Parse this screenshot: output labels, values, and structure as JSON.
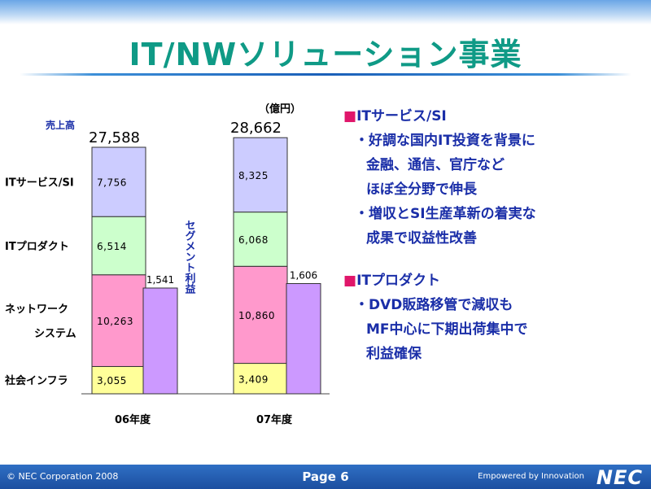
{
  "slide": {
    "title": "IT/NWソリューション事業"
  },
  "chart_data": {
    "type": "bar",
    "stacked": true,
    "unit": "（億円）",
    "categories": [
      "06年度",
      "07年度"
    ],
    "sales_label": "売上高",
    "totals": [
      "27,588",
      "28,662"
    ],
    "series": [
      {
        "name": "ITサービス/SI",
        "color": "#ccccff",
        "values": [
          7756,
          8325
        ],
        "labels": [
          "7,756",
          "8,325"
        ]
      },
      {
        "name": "ITプロダクト",
        "color": "#ccffcc",
        "values": [
          6514,
          6068
        ],
        "labels": [
          "6,514",
          "6,068"
        ]
      },
      {
        "name": "ネットワークシステム",
        "name_lines": [
          "ネットワーク",
          "システム"
        ],
        "color": "#ff99cc",
        "values": [
          10263,
          10860
        ],
        "labels": [
          "10,263",
          "10,860"
        ]
      },
      {
        "name": "社会インフラ",
        "color": "#ffff99",
        "values": [
          3055,
          3409
        ],
        "labels": [
          "3,055",
          "3,409"
        ]
      }
    ],
    "segment_profit": {
      "label": "セグメント利益",
      "color": "#cc99ff",
      "values": [
        1541,
        1606
      ],
      "labels": [
        "1,541",
        "1,606"
      ]
    }
  },
  "right_panel": {
    "sections": [
      {
        "heading_mark": "■",
        "heading": "ITサービス/SI",
        "bullets": [
          {
            "first": "・好調な国内IT投資を背景に",
            "rest": [
              "金融、通信、官庁など",
              "ほぼ全分野で伸長"
            ]
          },
          {
            "first": "・増収とSI生産革新の着実な",
            "rest": [
              "成果で収益性改善"
            ]
          }
        ]
      },
      {
        "heading_mark": "■",
        "heading": "ITプロダクト",
        "bullets": [
          {
            "first": "・DVD販路移管で減収も",
            "rest": [
              "MF中心に下期出荷集中で",
              "利益確保"
            ]
          }
        ]
      }
    ]
  },
  "footer": {
    "copyright": "© NEC Corporation 2008",
    "page": "Page 6",
    "tagline": "Empowered by Innovation",
    "logo": "NEC"
  }
}
